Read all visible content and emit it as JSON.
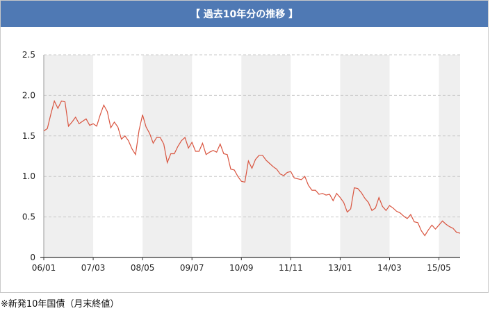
{
  "header": {
    "title": "【 過去10年分の推移 】"
  },
  "footnote": "※新発10年国債（月末終値）",
  "chart_data": {
    "type": "line",
    "ylim": [
      0,
      2.5
    ],
    "yticks": [
      0,
      0.5,
      1.0,
      1.5,
      2.0,
      2.5
    ],
    "ytick_labels": [
      "0",
      "0.5",
      "1.0",
      "1.5",
      "2.0",
      "2.5"
    ],
    "xtick_labels": [
      "06/01",
      "07/03",
      "08/05",
      "09/07",
      "10/09",
      "11/11",
      "13/01",
      "14/03",
      "15/05"
    ],
    "grid": "dashed-horizontal",
    "line_color": "#d9543f",
    "band_color": "#efefef",
    "series": [
      {
        "values": [
          1.56,
          1.59,
          1.77,
          1.93,
          1.84,
          1.93,
          1.92,
          1.62,
          1.67,
          1.73,
          1.65,
          1.68,
          1.71,
          1.63,
          1.65,
          1.62,
          1.76,
          1.88,
          1.8,
          1.6,
          1.67,
          1.61,
          1.46,
          1.5,
          1.44,
          1.34,
          1.27,
          1.57,
          1.76,
          1.61,
          1.53,
          1.41,
          1.48,
          1.48,
          1.4,
          1.17,
          1.28,
          1.28,
          1.37,
          1.44,
          1.48,
          1.35,
          1.42,
          1.31,
          1.31,
          1.41,
          1.27,
          1.3,
          1.32,
          1.3,
          1.4,
          1.28,
          1.27,
          1.09,
          1.08,
          1.0,
          0.94,
          0.93,
          1.19,
          1.1,
          1.21,
          1.26,
          1.26,
          1.2,
          1.16,
          1.12,
          1.09,
          1.03,
          1.01,
          1.05,
          1.06,
          0.98,
          0.97,
          0.96,
          1.0,
          0.89,
          0.83,
          0.83,
          0.78,
          0.79,
          0.77,
          0.78,
          0.7,
          0.79,
          0.74,
          0.68,
          0.56,
          0.6,
          0.86,
          0.85,
          0.8,
          0.73,
          0.68,
          0.58,
          0.61,
          0.74,
          0.63,
          0.58,
          0.64,
          0.61,
          0.57,
          0.55,
          0.51,
          0.48,
          0.53,
          0.44,
          0.43,
          0.33,
          0.27,
          0.34,
          0.4,
          0.35,
          0.4,
          0.45,
          0.41,
          0.38,
          0.36,
          0.31,
          0.3
        ]
      }
    ]
  }
}
